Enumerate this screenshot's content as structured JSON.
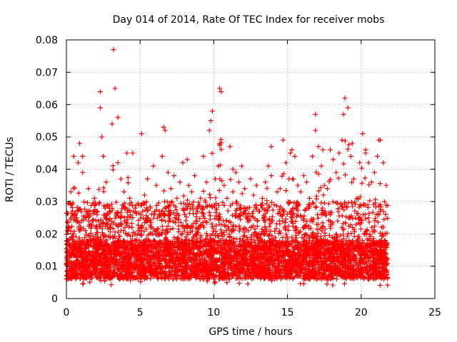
{
  "chart_data": {
    "type": "scatter",
    "title": "Day 014 of 2014, Rate Of TEC Index for receiver mobs",
    "xlabel": "GPS time / hours",
    "ylabel": "ROTI / TECUs",
    "xlim": [
      0,
      25
    ],
    "ylim": [
      0,
      0.08
    ],
    "x_ticks": [
      0,
      5,
      10,
      15,
      20,
      25
    ],
    "y_ticks": [
      0,
      0.01,
      0.02,
      0.03,
      0.04,
      0.05,
      0.06,
      0.07,
      0.08
    ],
    "x_tick_labels": [
      "0",
      "5",
      "10",
      "15",
      "20",
      "25"
    ],
    "y_tick_labels": [
      "0",
      "0.01",
      "0.02",
      "0.03",
      "0.04",
      "0.05",
      "0.06",
      "0.07",
      "0.08"
    ],
    "grid": true,
    "marker": "+",
    "color": "#ff0000",
    "series": [
      {
        "x": [
          0.05,
          0.3,
          0.5,
          0.7,
          0.9,
          1.1,
          1.3,
          1.5,
          1.7,
          1.9,
          2.1,
          2.3,
          2.5,
          2.7,
          2.9,
          3.1,
          3.3,
          3.5,
          3.7,
          3.9,
          4.1,
          4.3,
          4.5,
          4.7,
          4.9,
          5.1,
          5.3,
          5.5,
          5.7,
          5.9,
          6.1,
          6.3,
          6.5,
          6.7,
          6.9,
          7.1,
          7.3,
          7.5,
          7.7,
          7.9,
          8.1,
          8.3,
          8.5,
          8.7,
          8.9,
          9.1,
          9.3,
          9.5,
          9.7,
          9.9,
          10.1,
          10.3,
          10.5,
          10.7,
          10.9,
          11.1,
          11.3,
          11.5,
          11.7,
          11.9,
          12.1,
          12.3,
          12.5,
          12.7,
          12.9,
          13.1,
          13.3,
          13.5,
          13.7,
          13.9,
          14.1,
          14.3,
          14.5,
          14.7,
          14.9,
          15.1,
          15.3,
          15.5,
          15.7,
          15.9,
          16.1,
          16.3,
          16.5,
          16.7,
          16.9,
          17.1,
          17.3,
          17.5,
          17.7,
          17.9,
          18.1,
          18.3,
          18.5,
          18.7,
          18.9,
          19.1,
          19.3,
          19.5,
          19.7,
          19.9,
          20.1,
          20.3,
          20.5,
          20.7,
          20.9,
          21.1,
          21.3,
          21.5,
          21.7,
          3.2,
          3.5,
          2.3,
          10.4,
          9.8,
          18.8,
          16.9,
          4.5,
          0.8,
          1.1,
          2.4,
          5.1,
          6.6,
          8.2,
          11.3,
          13.9,
          15.2,
          17.4,
          19.4,
          20.3,
          21.2
        ],
        "y": [
          0.012,
          0.033,
          0.044,
          0.025,
          0.048,
          0.039,
          0.021,
          0.034,
          0.018,
          0.031,
          0.027,
          0.059,
          0.044,
          0.036,
          0.028,
          0.054,
          0.065,
          0.042,
          0.037,
          0.033,
          0.045,
          0.031,
          0.025,
          0.018,
          0.016,
          0.029,
          0.032,
          0.037,
          0.028,
          0.041,
          0.035,
          0.027,
          0.044,
          0.052,
          0.039,
          0.034,
          0.038,
          0.031,
          0.036,
          0.042,
          0.029,
          0.035,
          0.033,
          0.038,
          0.027,
          0.031,
          0.044,
          0.036,
          0.052,
          0.058,
          0.037,
          0.041,
          0.064,
          0.035,
          0.031,
          0.047,
          0.033,
          0.039,
          0.036,
          0.041,
          0.034,
          0.028,
          0.037,
          0.032,
          0.035,
          0.027,
          0.031,
          0.036,
          0.041,
          0.038,
          0.029,
          0.033,
          0.034,
          0.049,
          0.042,
          0.037,
          0.046,
          0.044,
          0.035,
          0.033,
          0.038,
          0.036,
          0.031,
          0.044,
          0.057,
          0.047,
          0.041,
          0.035,
          0.034,
          0.046,
          0.043,
          0.039,
          0.045,
          0.049,
          0.062,
          0.059,
          0.044,
          0.037,
          0.031,
          0.042,
          0.051,
          0.046,
          0.042,
          0.036,
          0.039,
          0.044,
          0.049,
          0.042,
          0.035,
          0.077,
          0.056,
          0.064,
          0.065,
          0.055,
          0.057,
          0.052,
          0.045,
          0.042,
          0.044,
          0.05,
          0.051,
          0.053,
          0.043,
          0.04,
          0.047,
          0.045,
          0.046,
          0.048,
          0.045,
          0.049
        ]
      }
    ],
    "dense_band": {
      "x_start": 0,
      "x_end": 21.8,
      "y_floor": 0.004,
      "y_typical_low": 0.006,
      "y_typical_high": 0.03
    }
  }
}
